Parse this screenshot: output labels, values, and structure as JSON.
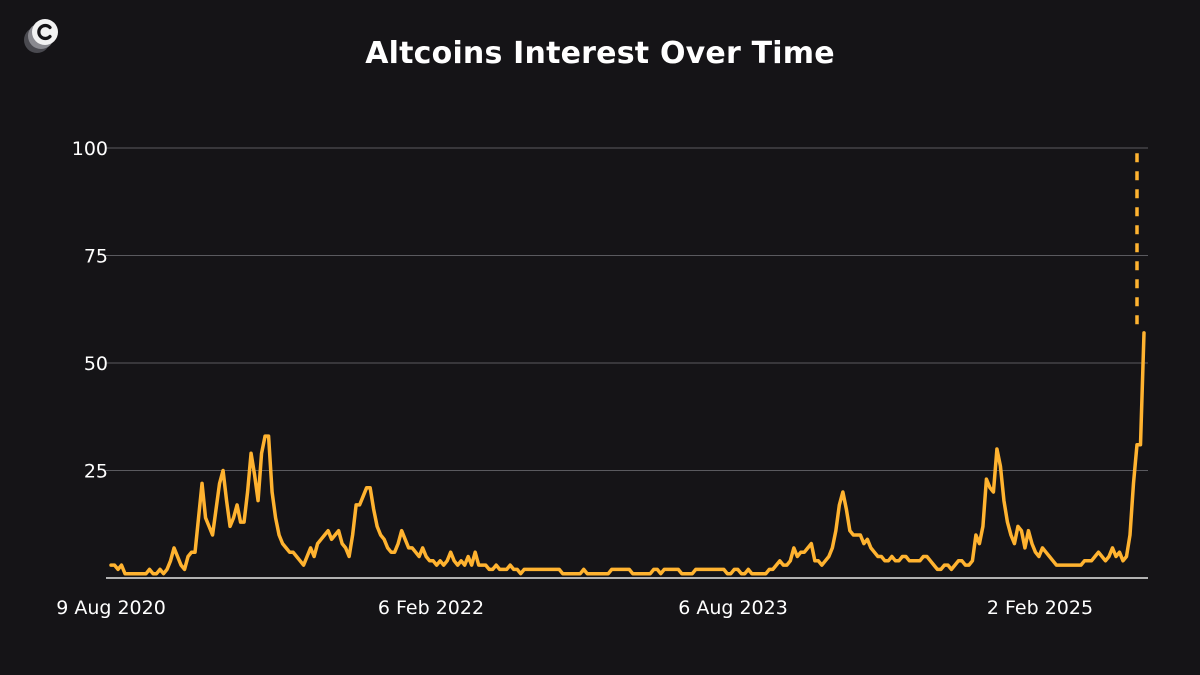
{
  "title": "Altcoins Interest Over Time",
  "logo_icon": "coin-c-icon",
  "colors": {
    "background": "#151417",
    "line": "#FFB330",
    "grid": "#5a5a5f",
    "text": "#ffffff"
  },
  "chart_data": {
    "type": "line",
    "title": "Altcoins Interest Over Time",
    "xlabel": "",
    "ylabel": "",
    "ylim": [
      0,
      100
    ],
    "yticks": [
      25,
      50,
      75,
      100
    ],
    "xtick_labels": [
      "9 Aug 2020",
      "6 Feb 2022",
      "6 Aug 2023",
      "2 Feb 2025"
    ],
    "grid": true,
    "legend": "none",
    "dashed_segment": {
      "from": 59,
      "to": 100
    },
    "series": [
      {
        "values": [
          3,
          3,
          2,
          3,
          1,
          1,
          1,
          1,
          1,
          1,
          1,
          2,
          1,
          1,
          2,
          1,
          2,
          4,
          7,
          5,
          3,
          2,
          5,
          6,
          6,
          14,
          22,
          14,
          12,
          10,
          16,
          22,
          25,
          18,
          12,
          14,
          17,
          13,
          13,
          20,
          29,
          24,
          18,
          29,
          33,
          33,
          20,
          14,
          10,
          8,
          7,
          6,
          6,
          5,
          4,
          3,
          5,
          7,
          5,
          8,
          9,
          10,
          11,
          9,
          10,
          11,
          8,
          7,
          5,
          10,
          17,
          17,
          19,
          21,
          21,
          16,
          12,
          10,
          9,
          7,
          6,
          6,
          8,
          11,
          9,
          7,
          7,
          6,
          5,
          7,
          5,
          4,
          4,
          3,
          4,
          3,
          4,
          6,
          4,
          3,
          4,
          3,
          5,
          3,
          6,
          3,
          3,
          3,
          2,
          2,
          3,
          2,
          2,
          2,
          3,
          2,
          2,
          1,
          2,
          2,
          2,
          2,
          2,
          2,
          2,
          2,
          2,
          2,
          2,
          1,
          1,
          1,
          1,
          1,
          1,
          2,
          1,
          1,
          1,
          1,
          1,
          1,
          1,
          2,
          2,
          2,
          2,
          2,
          2,
          1,
          1,
          1,
          1,
          1,
          1,
          2,
          2,
          1,
          2,
          2,
          2,
          2,
          2,
          1,
          1,
          1,
          1,
          2,
          2,
          2,
          2,
          2,
          2,
          2,
          2,
          2,
          1,
          1,
          2,
          2,
          1,
          1,
          2,
          1,
          1,
          1,
          1,
          1,
          2,
          2,
          3,
          4,
          3,
          3,
          4,
          7,
          5,
          6,
          6,
          7,
          8,
          4,
          4,
          3,
          4,
          5,
          7,
          11,
          17,
          20,
          16,
          11,
          10,
          10,
          10,
          8,
          9,
          7,
          6,
          5,
          5,
          4,
          4,
          5,
          4,
          4,
          5,
          5,
          4,
          4,
          4,
          4,
          5,
          5,
          4,
          3,
          2,
          2,
          3,
          3,
          2,
          3,
          4,
          4,
          3,
          3,
          4,
          10,
          8,
          12,
          23,
          21,
          20,
          30,
          26,
          18,
          13,
          10,
          8,
          12,
          11,
          7,
          11,
          8,
          6,
          5,
          7,
          6,
          5,
          4,
          3,
          3,
          3,
          3,
          3,
          3,
          3,
          3,
          4,
          4,
          4,
          5,
          6,
          5,
          4,
          5,
          7,
          5,
          6,
          4,
          5,
          10,
          22,
          31,
          31,
          57
        ]
      }
    ]
  }
}
